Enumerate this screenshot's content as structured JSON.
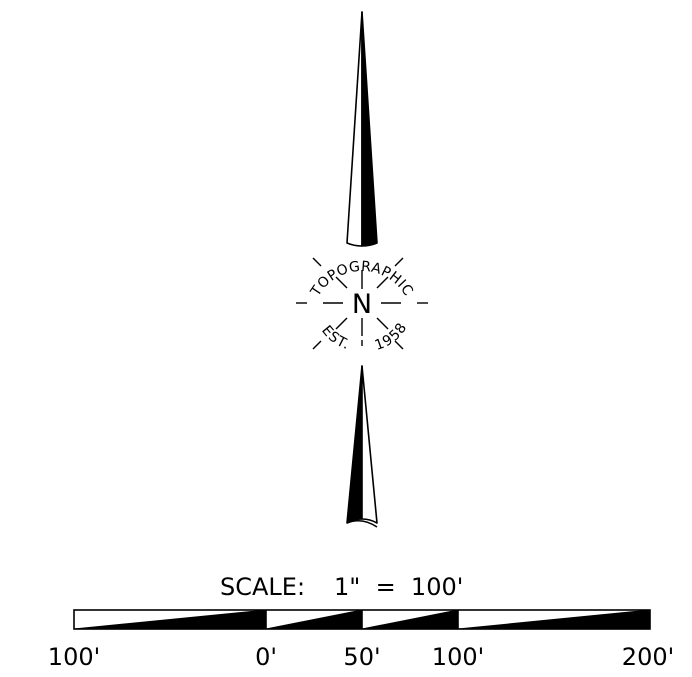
{
  "north_arrow": {
    "emblem_letter": "N",
    "emblem_arc_top": "TOPOGRAPHIC",
    "emblem_arc_bottom_left": "EST.",
    "emblem_arc_bottom_right": "1958"
  },
  "scale": {
    "label": "SCALE:",
    "ratio": "1\"  =  100'",
    "tick_labels": [
      "100'",
      "0'",
      "50'",
      "100'",
      "200'"
    ]
  },
  "colors": {
    "ink": "#000000",
    "paper": "#ffffff"
  }
}
